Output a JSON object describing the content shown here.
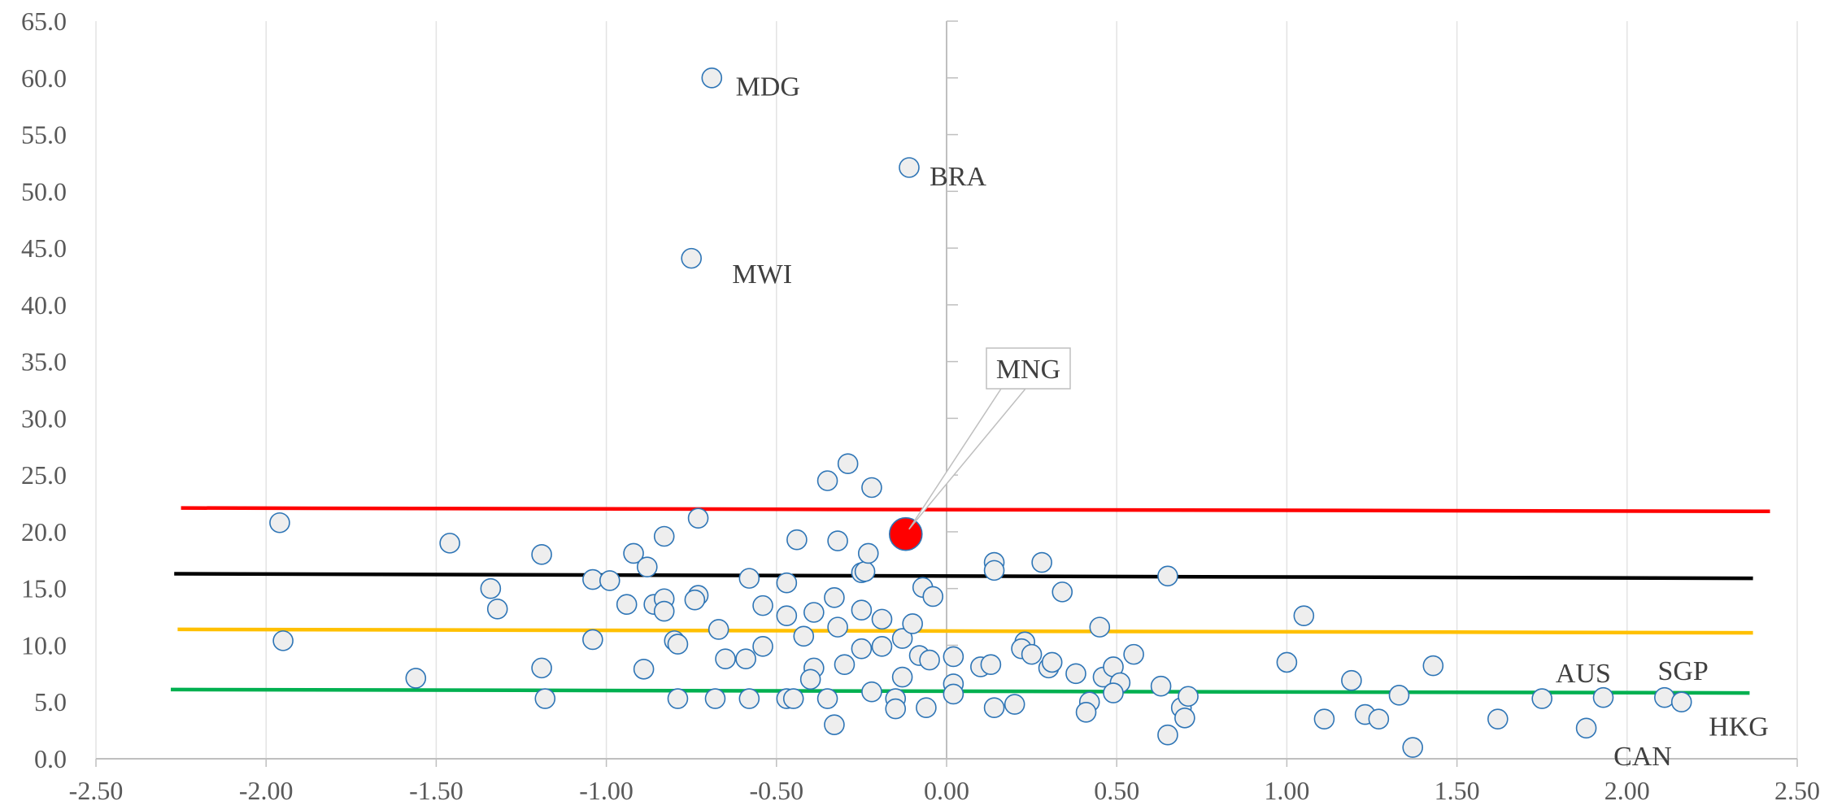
{
  "chart_data": {
    "type": "scatter",
    "xlim": [
      -2.5,
      2.5
    ],
    "ylim": [
      0,
      65
    ],
    "x_ticks": [
      "-2.50",
      "-2.00",
      "-1.50",
      "-1.00",
      "-0.50",
      "0.00",
      "0.50",
      "1.00",
      "1.50",
      "2.00",
      "2.50"
    ],
    "y_ticks": [
      "0.0",
      "5.0",
      "10.0",
      "15.0",
      "20.0",
      "25.0",
      "30.0",
      "35.0",
      "40.0",
      "45.0",
      "50.0",
      "55.0",
      "60.0",
      "65.0"
    ],
    "grid": {
      "vertical": true,
      "horizontal": false
    },
    "colors": {
      "marker_fill": "#eeeeee",
      "marker_stroke": "#2e75b6",
      "highlight_fill": "#ff0000",
      "highlight_stroke": "#2e75b6",
      "grid": "#e3e3e3",
      "axis": "#bfbfbf"
    },
    "trend_lines": [
      {
        "color": "#ff0000",
        "x": [
          -2.25,
          2.42
        ],
        "y": [
          22.1,
          21.8
        ]
      },
      {
        "color": "#000000",
        "x": [
          -2.27,
          2.37
        ],
        "y": [
          16.3,
          15.9
        ]
      },
      {
        "color": "#ffc000",
        "x": [
          -2.26,
          2.37
        ],
        "y": [
          11.4,
          11.1
        ]
      },
      {
        "color": "#00b050",
        "x": [
          -2.28,
          2.36
        ],
        "y": [
          6.1,
          5.8
        ]
      }
    ],
    "highlight": {
      "label": "MNG",
      "x": -0.12,
      "y": 19.8
    },
    "labels": [
      {
        "text": "MDG",
        "x": -0.62,
        "y": 59.3
      },
      {
        "text": "BRA",
        "x": -0.05,
        "y": 51.4
      },
      {
        "text": "MWI",
        "x": -0.63,
        "y": 42.8
      },
      {
        "text": "AUS",
        "x": 1.79,
        "y": 7.6
      },
      {
        "text": "SGP",
        "x": 2.09,
        "y": 7.8
      },
      {
        "text": "HKG",
        "x": 2.24,
        "y": 2.9
      },
      {
        "text": "CAN",
        "x": 1.96,
        "y": 0.3
      }
    ],
    "points": [
      [
        -0.69,
        60.0
      ],
      [
        -0.11,
        52.1
      ],
      [
        -0.75,
        44.1
      ],
      [
        -1.96,
        20.8
      ],
      [
        -1.46,
        19.0
      ],
      [
        -1.95,
        10.4
      ],
      [
        -1.56,
        7.1
      ],
      [
        -1.19,
        18.0
      ],
      [
        -1.19,
        8.0
      ],
      [
        -1.18,
        5.3
      ],
      [
        -1.34,
        15.0
      ],
      [
        -1.32,
        13.2
      ],
      [
        -1.04,
        15.8
      ],
      [
        -0.99,
        15.7
      ],
      [
        -1.04,
        10.5
      ],
      [
        -0.94,
        13.6
      ],
      [
        -0.92,
        18.1
      ],
      [
        -0.88,
        16.9
      ],
      [
        -0.89,
        7.9
      ],
      [
        -0.86,
        13.6
      ],
      [
        -0.83,
        19.6
      ],
      [
        -0.83,
        14.1
      ],
      [
        -0.83,
        13.0
      ],
      [
        -0.8,
        10.4
      ],
      [
        -0.79,
        10.1
      ],
      [
        -0.79,
        5.3
      ],
      [
        -0.73,
        21.2
      ],
      [
        -0.73,
        14.4
      ],
      [
        -0.74,
        14.0
      ],
      [
        -0.67,
        11.4
      ],
      [
        -0.65,
        8.8
      ],
      [
        -0.68,
        5.3
      ],
      [
        -0.58,
        15.9
      ],
      [
        -0.59,
        8.8
      ],
      [
        -0.58,
        5.3
      ],
      [
        -0.54,
        13.5
      ],
      [
        -0.54,
        9.9
      ],
      [
        -0.47,
        15.5
      ],
      [
        -0.47,
        12.6
      ],
      [
        -0.47,
        5.3
      ],
      [
        -0.45,
        5.3
      ],
      [
        -0.44,
        19.3
      ],
      [
        -0.42,
        10.8
      ],
      [
        -0.39,
        12.9
      ],
      [
        -0.39,
        8.0
      ],
      [
        -0.4,
        7.0
      ],
      [
        -0.35,
        24.5
      ],
      [
        -0.35,
        5.3
      ],
      [
        -0.33,
        14.2
      ],
      [
        -0.32,
        19.2
      ],
      [
        -0.32,
        11.6
      ],
      [
        -0.3,
        8.3
      ],
      [
        -0.33,
        3.0
      ],
      [
        -0.29,
        26.0
      ],
      [
        -0.25,
        16.4
      ],
      [
        -0.24,
        16.5
      ],
      [
        -0.25,
        13.1
      ],
      [
        -0.25,
        9.7
      ],
      [
        -0.23,
        18.1
      ],
      [
        -0.22,
        23.9
      ],
      [
        -0.22,
        5.9
      ],
      [
        -0.19,
        12.3
      ],
      [
        -0.19,
        9.9
      ],
      [
        -0.15,
        5.3
      ],
      [
        -0.15,
        4.4
      ],
      [
        -0.13,
        10.6
      ],
      [
        -0.13,
        7.2
      ],
      [
        -0.1,
        11.9
      ],
      [
        -0.07,
        15.1
      ],
      [
        -0.08,
        9.1
      ],
      [
        -0.05,
        8.7
      ],
      [
        -0.06,
        4.5
      ],
      [
        -0.04,
        14.3
      ],
      [
        0.02,
        9.0
      ],
      [
        0.02,
        6.6
      ],
      [
        0.02,
        5.7
      ],
      [
        0.1,
        8.1
      ],
      [
        0.13,
        8.3
      ],
      [
        0.14,
        17.3
      ],
      [
        0.14,
        16.6
      ],
      [
        0.14,
        4.5
      ],
      [
        0.2,
        4.8
      ],
      [
        0.23,
        10.3
      ],
      [
        0.22,
        9.7
      ],
      [
        0.25,
        9.2
      ],
      [
        0.28,
        17.3
      ],
      [
        0.3,
        8.0
      ],
      [
        0.31,
        8.5
      ],
      [
        0.34,
        14.7
      ],
      [
        0.38,
        7.5
      ],
      [
        0.42,
        5.0
      ],
      [
        0.41,
        4.1
      ],
      [
        0.45,
        11.6
      ],
      [
        0.46,
        7.2
      ],
      [
        0.49,
        8.1
      ],
      [
        0.51,
        6.7
      ],
      [
        0.49,
        5.8
      ],
      [
        0.55,
        9.2
      ],
      [
        0.63,
        6.4
      ],
      [
        0.65,
        16.1
      ],
      [
        0.65,
        2.1
      ],
      [
        0.69,
        4.5
      ],
      [
        0.71,
        5.5
      ],
      [
        0.7,
        3.6
      ],
      [
        1.0,
        8.5
      ],
      [
        1.05,
        12.6
      ],
      [
        1.11,
        3.5
      ],
      [
        1.19,
        6.9
      ],
      [
        1.23,
        3.9
      ],
      [
        1.27,
        3.5
      ],
      [
        1.33,
        5.6
      ],
      [
        1.37,
        1.0
      ],
      [
        1.43,
        8.2
      ],
      [
        1.62,
        3.5
      ],
      [
        1.75,
        5.3
      ],
      [
        1.88,
        2.7
      ],
      [
        1.93,
        5.4
      ],
      [
        2.11,
        5.4
      ],
      [
        2.16,
        5.0
      ]
    ]
  }
}
